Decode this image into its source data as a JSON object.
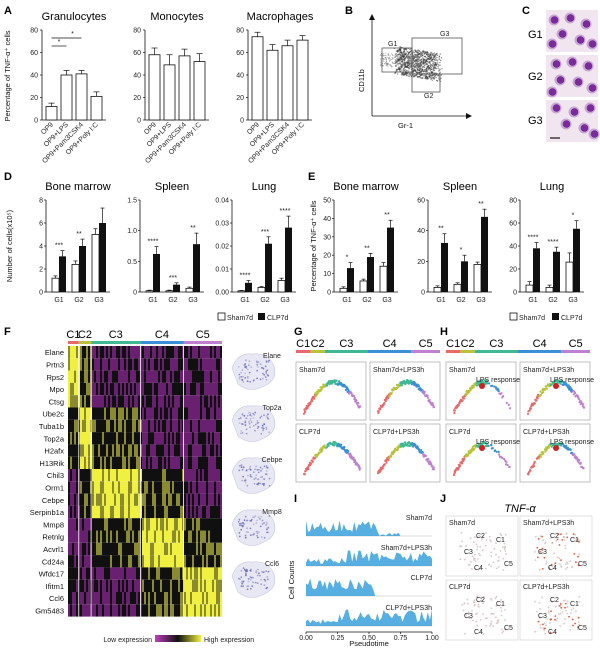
{
  "panels": {
    "A": "A",
    "B": "B",
    "C": "C",
    "D": "D",
    "E": "E",
    "F": "F",
    "G": "G",
    "H": "H",
    "I": "I",
    "J": "J"
  },
  "colors": {
    "c1": "#e66a6a",
    "c2": "#b8c23a",
    "c3": "#40b894",
    "c4": "#3a8fd6",
    "c5": "#c080d0",
    "bar_filled": "#111111",
    "bar_open": "#ffffff",
    "cell_purple": "#7a2a9a",
    "heat_low": "#c040c0",
    "heat_mid": "#101010",
    "heat_high": "#f0f040",
    "density": "#3aa0dc",
    "umap": "#6a6ab8"
  },
  "chart_data": [
    {
      "id": "A",
      "type": "bar",
      "ylabel": "Percentage of TNF-α⁺ cells",
      "ylim": [
        0,
        80
      ],
      "yticks": [
        0,
        20,
        40,
        60,
        80
      ],
      "categories": [
        "OP9",
        "OP9+LPS",
        "OP9+Pam3CSK4",
        "OP9+Poly I:C"
      ],
      "subplots": [
        {
          "title": "Granulocytes",
          "values": [
            12,
            40,
            41,
            21
          ],
          "errors": [
            3,
            4,
            3,
            4
          ],
          "sig": [
            "*",
            "*"
          ]
        },
        {
          "title": "Monocytes",
          "values": [
            58,
            49,
            57,
            52
          ],
          "errors": [
            6,
            9,
            6,
            7
          ]
        },
        {
          "title": "Macrophages",
          "values": [
            74,
            62,
            66,
            71
          ],
          "errors": [
            4,
            5,
            5,
            4
          ]
        }
      ]
    },
    {
      "id": "B",
      "type": "scatter",
      "xlabel": "Gr-1",
      "ylabel": "CD11b",
      "gates": [
        "G1",
        "G2",
        "G3"
      ]
    },
    {
      "id": "C",
      "type": "image",
      "rows": [
        "G1",
        "G2",
        "G3"
      ]
    },
    {
      "id": "D",
      "type": "bar",
      "ylabel": "Number of cells(x10⁵)",
      "categories": [
        "G1",
        "G2",
        "G3"
      ],
      "series_names": [
        "Sham7d",
        "CLP7d"
      ],
      "subplots": [
        {
          "title": "Bone marrow",
          "ylim": [
            0,
            8
          ],
          "yticks": [
            "0",
            "2",
            "4",
            "6",
            "8"
          ],
          "sham": [
            1.2,
            2.4,
            5.0
          ],
          "sham_err": [
            0.2,
            0.3,
            0.5
          ],
          "clp": [
            3.1,
            4.0,
            6.0
          ],
          "clp_err": [
            0.5,
            0.6,
            1.3
          ],
          "sig": [
            "***",
            "**",
            ""
          ]
        },
        {
          "title": "Spleen",
          "ylim": [
            0,
            1.5
          ],
          "yticks": [
            "0",
            "0.5",
            "1.0",
            "1.5"
          ],
          "sham": [
            0.02,
            0.02,
            0.06
          ],
          "sham_err": [
            0.01,
            0.01,
            0.02
          ],
          "clp": [
            0.62,
            0.12,
            0.78
          ],
          "clp_err": [
            0.12,
            0.03,
            0.18
          ],
          "sig": [
            "****",
            "***",
            "**"
          ]
        },
        {
          "title": "Lung",
          "ylim": [
            0,
            0.04
          ],
          "yticks": [
            "0.00",
            "0.01",
            "0.02",
            "0.03",
            "0.04"
          ],
          "sham": [
            0.0005,
            0.002,
            0.005
          ],
          "sham_err": [
            0.0002,
            0.0004,
            0.001
          ],
          "clp": [
            0.004,
            0.021,
            0.028
          ],
          "clp_err": [
            0.001,
            0.003,
            0.005
          ],
          "sig": [
            "****",
            "***",
            "****"
          ]
        }
      ]
    },
    {
      "id": "E",
      "type": "bar",
      "ylabel": "Percentage of TNF-α⁺ cells",
      "categories": [
        "G1",
        "G2",
        "G3"
      ],
      "series_names": [
        "Sham7d",
        "CLP7d"
      ],
      "subplots": [
        {
          "title": "Bone marrow",
          "ylim": [
            0,
            50
          ],
          "yticks": [
            "0",
            "10",
            "20",
            "30",
            "40",
            "50"
          ],
          "sham": [
            2,
            6,
            14
          ],
          "sham_err": [
            0.8,
            1,
            2
          ],
          "clp": [
            13,
            19,
            35
          ],
          "clp_err": [
            3,
            2,
            4
          ],
          "sig": [
            "*",
            "**",
            "**"
          ]
        },
        {
          "title": "Spleen",
          "ylim": [
            0,
            60
          ],
          "yticks": [
            "0",
            "20",
            "40",
            "60"
          ],
          "sham": [
            3,
            5,
            18
          ],
          "sham_err": [
            1,
            1,
            1.5
          ],
          "clp": [
            32,
            20,
            49
          ],
          "clp_err": [
            6,
            4,
            5
          ],
          "sig": [
            "**",
            "*",
            "**"
          ]
        },
        {
          "title": "Lung",
          "ylim": [
            0,
            80
          ],
          "yticks": [
            "0",
            "20",
            "40",
            "60",
            "80"
          ],
          "sham": [
            6,
            4,
            26
          ],
          "sham_err": [
            3,
            2,
            8
          ],
          "clp": [
            38,
            35,
            55
          ],
          "clp_err": [
            5,
            4,
            7
          ],
          "sig": [
            "****",
            "****",
            "*"
          ]
        }
      ]
    },
    {
      "id": "F",
      "type": "heatmap",
      "clusters": [
        "C1",
        "C2",
        "C3",
        "C4",
        "C5"
      ],
      "cluster_widths": [
        0.07,
        0.08,
        0.32,
        0.28,
        0.25
      ],
      "genes": [
        "Elane",
        "Prtn3",
        "Rps2",
        "Mpo",
        "Ctsg",
        "Ube2c",
        "Tuba1b",
        "Top2a",
        "H2afx",
        "H13Rik",
        "Chil3",
        "Orm1",
        "Cebpe",
        "Serpinb1a",
        "Mmp8",
        "Retnlg",
        "Acvrl1",
        "Cd24a",
        "Wfdc17",
        "Ifitm1",
        "Ccl6",
        "Gm5483"
      ],
      "gene_block": [
        0,
        0,
        0,
        0,
        0,
        1,
        1,
        1,
        1,
        1,
        2,
        2,
        2,
        2,
        3,
        3,
        3,
        3,
        4,
        4,
        4,
        4
      ],
      "legend_low": "Low expression",
      "legend_high": "High expression",
      "umap_labels": [
        "Elane",
        "Top2a",
        "Cebpe",
        "Mmp8",
        "Ccl6"
      ]
    },
    {
      "id": "G",
      "type": "scatter",
      "clusters": [
        "C1",
        "C2",
        "C3",
        "C4",
        "C5"
      ],
      "conditions": [
        "Sham7d",
        "Sham7d+LPS3h",
        "CLP7d",
        "CLP7d+LPS3h"
      ]
    },
    {
      "id": "H",
      "type": "scatter",
      "clusters": [
        "C1",
        "C2",
        "C3",
        "C4",
        "C5"
      ],
      "conditions": [
        "Sham7d",
        "Sham7d+LPS3h",
        "CLP7d",
        "CLP7d+LPS3h"
      ],
      "annotation": "LPS response"
    },
    {
      "id": "I",
      "type": "area",
      "xlabel": "Pseudotime",
      "ylabel": "Cell Counts",
      "xticks": [
        "0.00",
        "0.25",
        "0.50",
        "0.75",
        "1.00"
      ],
      "tracks": [
        "Sham7d",
        "Sham7d+LPS3h",
        "CLP7d",
        "CLP7d+LPS3h"
      ]
    },
    {
      "id": "J",
      "type": "scatter",
      "title": "TNF-α",
      "conditions": [
        "Sham7d",
        "Sham7d+LPS3h",
        "CLP7d",
        "CLP7d+LPS3h"
      ],
      "cluster_labels": [
        "C1",
        "C2",
        "C3",
        "C4",
        "C5"
      ]
    }
  ]
}
